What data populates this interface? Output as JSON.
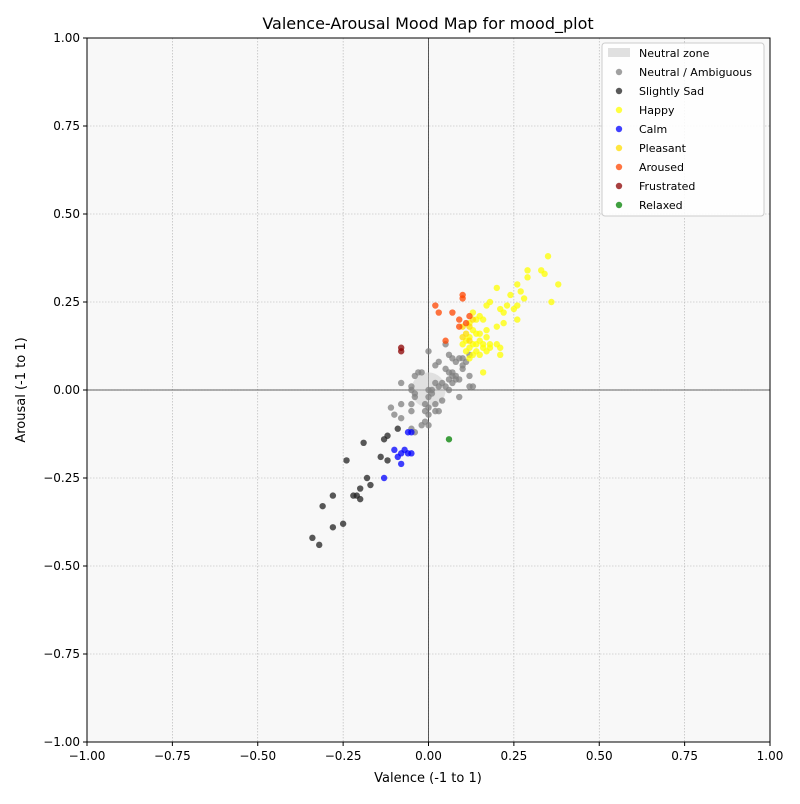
{
  "chart_data": {
    "type": "scatter",
    "title": "Valence-Arousal Mood Map for mood_plot",
    "xlabel": "Valence (-1 to 1)",
    "ylabel": "Arousal (-1 to 1)",
    "xlim": [
      -1,
      1
    ],
    "ylim": [
      -1,
      1
    ],
    "xticks": [
      -1,
      -0.75,
      -0.5,
      -0.25,
      0,
      0.25,
      0.5,
      0.75,
      1
    ],
    "yticks": [
      -1,
      -0.75,
      -0.5,
      -0.25,
      0,
      0.25,
      0.5,
      0.75,
      1
    ],
    "xtick_labels": [
      "−1.00",
      "−0.75",
      "−0.50",
      "−0.25",
      "0.00",
      "0.25",
      "0.50",
      "0.75",
      "1.00"
    ],
    "ytick_labels": [
      "−1.00",
      "−0.75",
      "−0.50",
      "−0.25",
      "0.00",
      "0.25",
      "0.50",
      "0.75",
      "1.00"
    ],
    "grid": true,
    "background": "#f8f8f8",
    "legend_position": "top-right",
    "neutral_zone": {
      "label": "Neutral zone",
      "center": [
        0,
        0
      ],
      "radius": 0.05,
      "color": "#cccccc"
    },
    "series": [
      {
        "name": "Neutral / Ambiguous",
        "color": "#808080",
        "points": [
          [
            -0.08,
            0.02
          ],
          [
            -0.05,
            0.01
          ],
          [
            -0.05,
            0.0
          ],
          [
            -0.04,
            -0.01
          ],
          [
            -0.04,
            -0.02
          ],
          [
            -0.03,
            0.05
          ],
          [
            -0.04,
            0.04
          ],
          [
            -0.02,
            0.05
          ],
          [
            0.0,
            0.11
          ],
          [
            0.02,
            0.07
          ],
          [
            0.03,
            0.08
          ],
          [
            0.05,
            0.13
          ],
          [
            0.06,
            0.1
          ],
          [
            0.07,
            0.09
          ],
          [
            0.08,
            0.08
          ],
          [
            0.09,
            0.09
          ],
          [
            0.1,
            0.09
          ],
          [
            0.1,
            0.07
          ],
          [
            0.11,
            0.08
          ],
          [
            0.12,
            0.1
          ],
          [
            0.05,
            0.06
          ],
          [
            0.06,
            0.05
          ],
          [
            0.07,
            0.05
          ],
          [
            0.07,
            0.04
          ],
          [
            0.06,
            0.03
          ],
          [
            0.08,
            0.04
          ],
          [
            0.09,
            0.03
          ],
          [
            0.1,
            0.06
          ],
          [
            0.12,
            0.04
          ],
          [
            0.12,
            0.01
          ],
          [
            0.13,
            0.01
          ],
          [
            0.08,
            0.03
          ],
          [
            0.07,
            0.02
          ],
          [
            0.06,
            0.0
          ],
          [
            0.05,
            0.01
          ],
          [
            0.04,
            0.02
          ],
          [
            0.04,
            -0.03
          ],
          [
            0.03,
            0.01
          ],
          [
            0.02,
            0.02
          ],
          [
            0.01,
            0.0
          ],
          [
            0.0,
            0.0
          ],
          [
            0.0,
            -0.02
          ],
          [
            -0.01,
            -0.04
          ],
          [
            0.0,
            -0.05
          ],
          [
            0.0,
            -0.07
          ],
          [
            -0.01,
            -0.09
          ],
          [
            0.0,
            -0.1
          ],
          [
            -0.02,
            -0.1
          ],
          [
            -0.01,
            -0.06
          ],
          [
            -0.05,
            -0.04
          ],
          [
            -0.05,
            -0.06
          ],
          [
            -0.08,
            -0.04
          ],
          [
            -0.08,
            -0.08
          ],
          [
            -0.1,
            -0.07
          ],
          [
            -0.11,
            -0.05
          ],
          [
            -0.05,
            -0.11
          ],
          [
            -0.04,
            -0.12
          ],
          [
            0.03,
            -0.06
          ],
          [
            0.02,
            -0.06
          ],
          [
            0.09,
            -0.02
          ],
          [
            0.02,
            -0.04
          ],
          [
            0.01,
            -0.01
          ]
        ]
      },
      {
        "name": "Slightly Sad",
        "color": "#222222",
        "points": [
          [
            -0.09,
            -0.11
          ],
          [
            -0.12,
            -0.13
          ],
          [
            -0.13,
            -0.14
          ],
          [
            -0.19,
            -0.15
          ],
          [
            -0.14,
            -0.19
          ],
          [
            -0.12,
            -0.2
          ],
          [
            -0.24,
            -0.2
          ],
          [
            -0.18,
            -0.25
          ],
          [
            -0.17,
            -0.27
          ],
          [
            -0.2,
            -0.28
          ],
          [
            -0.22,
            -0.3
          ],
          [
            -0.21,
            -0.3
          ],
          [
            -0.2,
            -0.31
          ],
          [
            -0.28,
            -0.3
          ],
          [
            -0.31,
            -0.33
          ],
          [
            -0.25,
            -0.38
          ],
          [
            -0.28,
            -0.39
          ],
          [
            -0.34,
            -0.42
          ],
          [
            -0.32,
            -0.44
          ]
        ]
      },
      {
        "name": "Happy",
        "color": "#ffff00",
        "points": [
          [
            0.35,
            0.38
          ],
          [
            0.33,
            0.34
          ],
          [
            0.34,
            0.33
          ],
          [
            0.29,
            0.34
          ],
          [
            0.29,
            0.32
          ],
          [
            0.38,
            0.3
          ],
          [
            0.26,
            0.3
          ],
          [
            0.2,
            0.29
          ],
          [
            0.27,
            0.28
          ],
          [
            0.24,
            0.27
          ],
          [
            0.28,
            0.26
          ],
          [
            0.36,
            0.25
          ],
          [
            0.18,
            0.25
          ],
          [
            0.17,
            0.24
          ],
          [
            0.23,
            0.24
          ],
          [
            0.25,
            0.23
          ],
          [
            0.21,
            0.23
          ],
          [
            0.26,
            0.24
          ],
          [
            0.22,
            0.22
          ],
          [
            0.15,
            0.21
          ],
          [
            0.13,
            0.22
          ],
          [
            0.14,
            0.2
          ],
          [
            0.26,
            0.2
          ],
          [
            0.16,
            0.2
          ],
          [
            0.12,
            0.19
          ],
          [
            0.2,
            0.18
          ],
          [
            0.22,
            0.19
          ],
          [
            0.17,
            0.17
          ],
          [
            0.13,
            0.17
          ],
          [
            0.12,
            0.15
          ],
          [
            0.14,
            0.16
          ],
          [
            0.15,
            0.16
          ],
          [
            0.17,
            0.15
          ],
          [
            0.11,
            0.14
          ],
          [
            0.13,
            0.13
          ],
          [
            0.15,
            0.14
          ],
          [
            0.16,
            0.13
          ],
          [
            0.18,
            0.13
          ],
          [
            0.2,
            0.13
          ],
          [
            0.12,
            0.12
          ],
          [
            0.14,
            0.11
          ],
          [
            0.16,
            0.12
          ],
          [
            0.18,
            0.12
          ],
          [
            0.21,
            0.12
          ],
          [
            0.11,
            0.11
          ],
          [
            0.13,
            0.1
          ],
          [
            0.15,
            0.1
          ],
          [
            0.17,
            0.11
          ],
          [
            0.21,
            0.1
          ],
          [
            0.16,
            0.05
          ],
          [
            0.12,
            0.09
          ],
          [
            0.1,
            0.13
          ],
          [
            0.14,
            0.13
          ]
        ]
      },
      {
        "name": "Calm",
        "color": "#0000ff",
        "points": [
          [
            -0.05,
            -0.12
          ],
          [
            -0.06,
            -0.12
          ],
          [
            -0.05,
            -0.18
          ],
          [
            -0.06,
            -0.18
          ],
          [
            -0.07,
            -0.17
          ],
          [
            -0.08,
            -0.18
          ],
          [
            -0.1,
            -0.17
          ],
          [
            -0.09,
            -0.19
          ],
          [
            -0.08,
            -0.21
          ],
          [
            -0.13,
            -0.25
          ]
        ]
      },
      {
        "name": "Pleasant",
        "color": "#ffdd00",
        "points": [
          [
            0.1,
            0.18
          ],
          [
            0.12,
            0.18
          ],
          [
            0.13,
            0.2
          ],
          [
            0.11,
            0.16
          ],
          [
            0.1,
            0.15
          ],
          [
            0.12,
            0.14
          ]
        ]
      },
      {
        "name": "Aroused",
        "color": "#ff4500",
        "points": [
          [
            0.02,
            0.24
          ],
          [
            0.03,
            0.22
          ],
          [
            0.07,
            0.22
          ],
          [
            0.1,
            0.27
          ],
          [
            0.1,
            0.26
          ],
          [
            0.09,
            0.2
          ],
          [
            0.09,
            0.18
          ],
          [
            0.05,
            0.14
          ],
          [
            0.11,
            0.19
          ],
          [
            0.12,
            0.21
          ]
        ]
      },
      {
        "name": "Frustrated",
        "color": "#8b0000",
        "points": [
          [
            -0.08,
            0.12
          ],
          [
            -0.08,
            0.11
          ]
        ]
      },
      {
        "name": "Relaxed",
        "color": "#008000",
        "points": [
          [
            0.06,
            -0.14
          ]
        ]
      }
    ]
  }
}
